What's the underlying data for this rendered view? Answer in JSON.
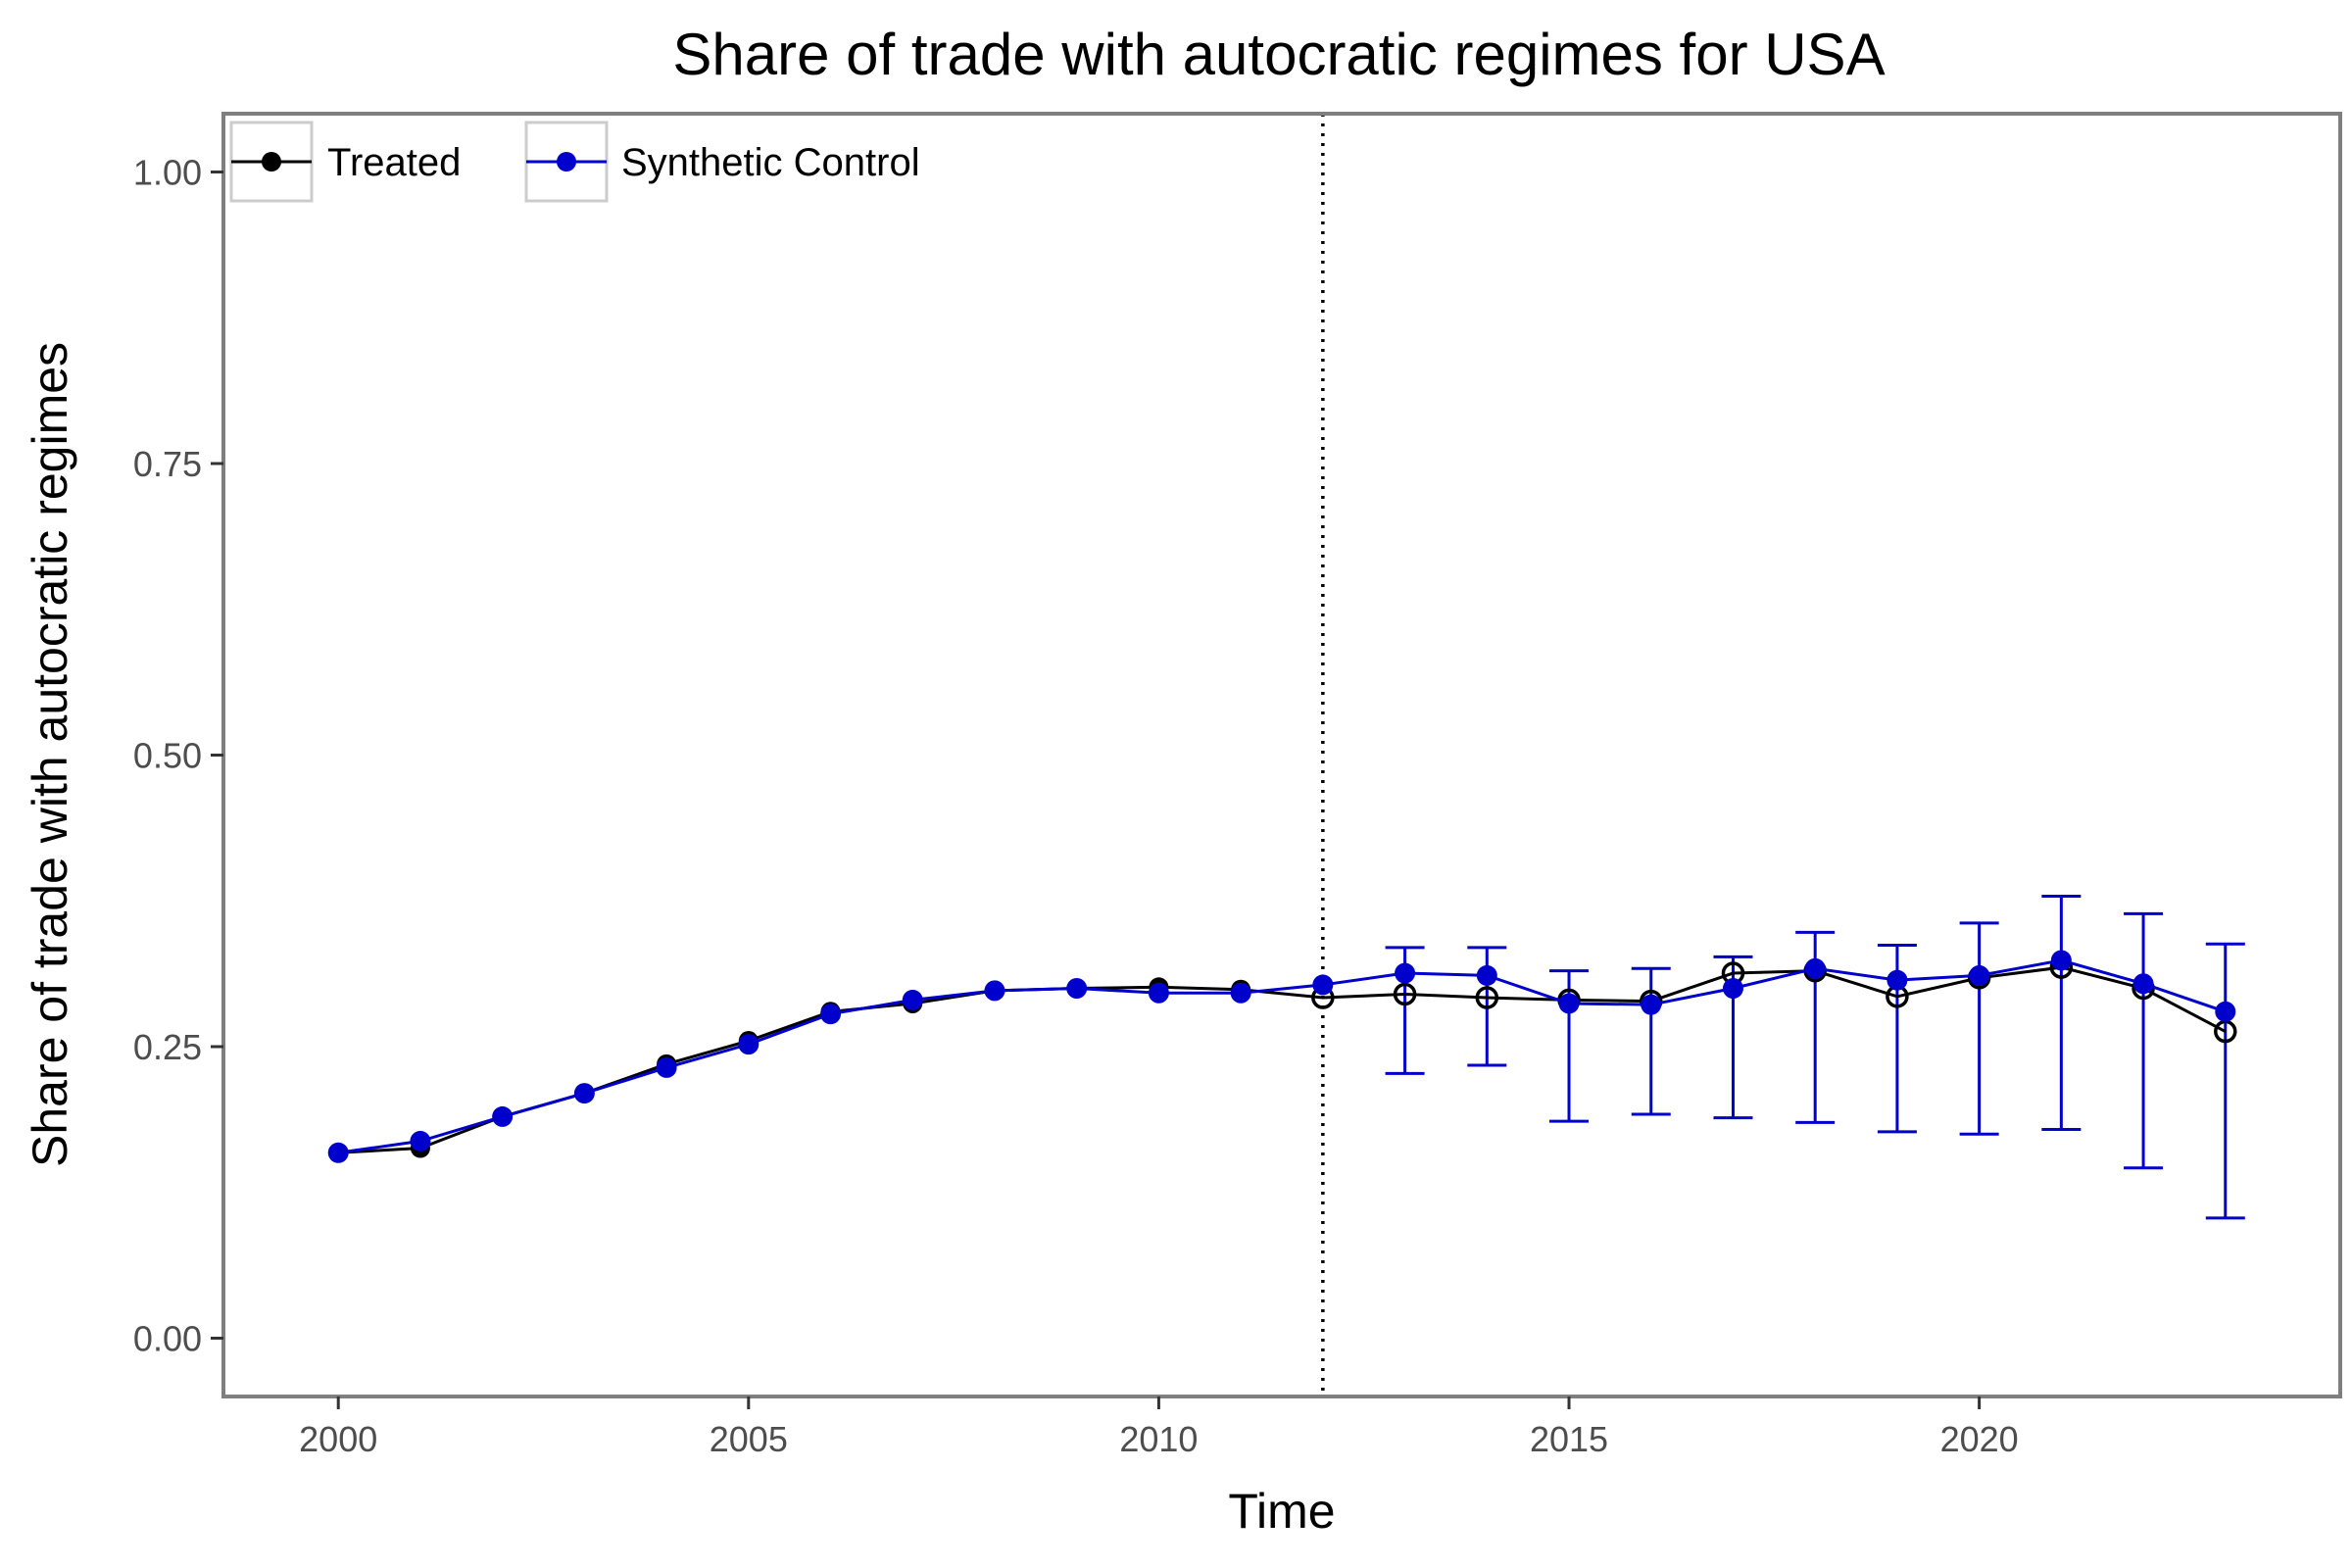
{
  "chart_data": {
    "type": "line",
    "title": "Share of trade with autocratic regimes for USA",
    "xlabel": "Time",
    "ylabel": "Share of trade with autocratic regimes",
    "xlim": [
      1998.6,
      2024.4
    ],
    "ylim": [
      -0.05,
      1.05
    ],
    "x_ticks": [
      2000,
      2005,
      2010,
      2015,
      2020
    ],
    "x_tick_labels": [
      "2000",
      "2005",
      "2010",
      "2015",
      "2020"
    ],
    "y_ticks": [
      0,
      0.25,
      0.5,
      0.75,
      1.0
    ],
    "y_tick_labels": [
      "0.00",
      "0.25",
      "0.50",
      "0.75",
      "1.00"
    ],
    "grid": false,
    "legend_position": "top-left",
    "treatment_year": 2012,
    "x": [
      2000,
      2001,
      2002,
      2003,
      2004,
      2005,
      2006,
      2007,
      2008,
      2009,
      2010,
      2011,
      2012,
      2013,
      2014,
      2015,
      2016,
      2017,
      2018,
      2019,
      2020,
      2021,
      2022,
      2023
    ],
    "series": [
      {
        "name": "Treated",
        "color": "#000000",
        "values": [
          0.159,
          0.163,
          0.19,
          0.21,
          0.235,
          0.255,
          0.28,
          0.287,
          0.298,
          0.3,
          0.301,
          0.299,
          0.292,
          0.295,
          0.292,
          0.29,
          0.289,
          0.313,
          0.315,
          0.293,
          0.309,
          0.318,
          0.3,
          0.263
        ]
      },
      {
        "name": "Synthetic Control",
        "color": "#0000cc",
        "values": [
          0.159,
          0.169,
          0.19,
          0.21,
          0.232,
          0.252,
          0.278,
          0.29,
          0.298,
          0.3,
          0.296,
          0.296,
          0.303,
          0.313,
          0.311,
          0.287,
          0.286,
          0.3,
          0.317,
          0.307,
          0.311,
          0.324,
          0.304,
          0.28
        ],
        "error_bars": {
          "x": [
            2013,
            2014,
            2015,
            2016,
            2017,
            2018,
            2019,
            2020,
            2021,
            2022,
            2023
          ],
          "lower": [
            0.227,
            0.234,
            0.186,
            0.192,
            0.189,
            0.185,
            0.177,
            0.175,
            0.179,
            0.146,
            0.103
          ],
          "upper": [
            0.335,
            0.335,
            0.315,
            0.317,
            0.327,
            0.348,
            0.337,
            0.356,
            0.379,
            0.364,
            0.338
          ]
        }
      }
    ]
  }
}
